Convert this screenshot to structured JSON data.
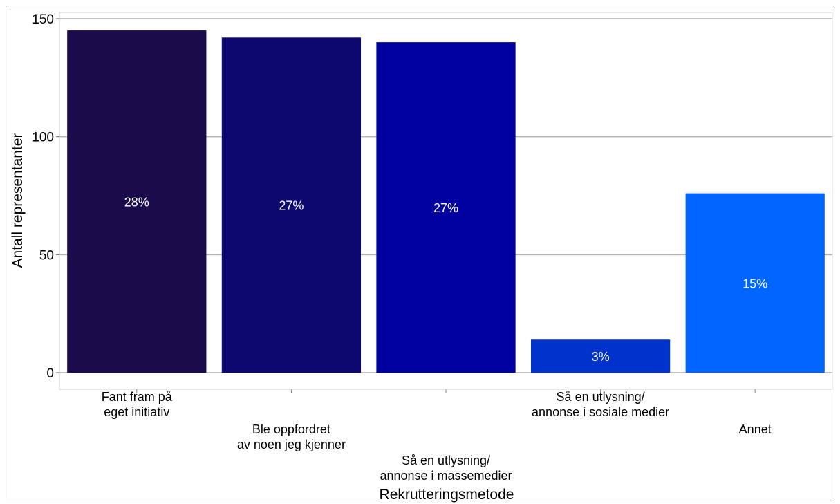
{
  "chart_data": {
    "type": "bar",
    "xlabel": "Rekrutteringsmetode",
    "ylabel": "Antall representanter",
    "ylim": [
      0,
      152
    ],
    "yticks": [
      0,
      50,
      100,
      150
    ],
    "grid": true,
    "categories": [
      "Fant fram på\neget initiativ",
      "Ble oppfordret\nav noen jeg kjenner",
      "Så en utlysning/\nannonse i massemedier",
      "Så en utlysning/\nannonse i sosiale medier",
      "Annet"
    ],
    "values": [
      145,
      142,
      140,
      14,
      76
    ],
    "data_labels": [
      "28%",
      "27%",
      "27%",
      "3%",
      "15%"
    ],
    "colors": [
      "#1a0b4a",
      "#0d0770",
      "#0000a0",
      "#0033cc",
      "#0066ff"
    ]
  }
}
